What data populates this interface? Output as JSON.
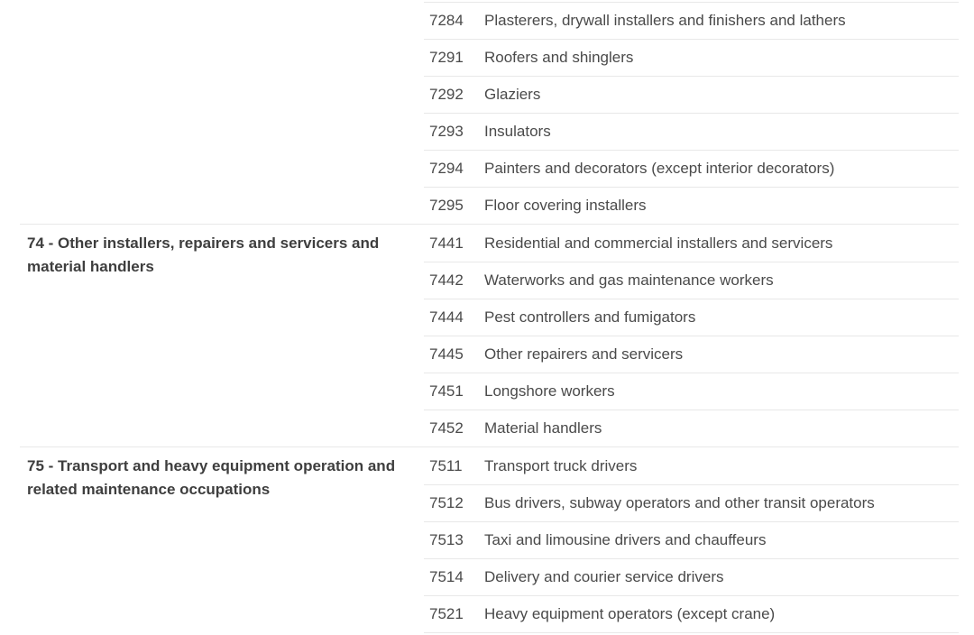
{
  "table": {
    "colors": {
      "background": "#ffffff",
      "text": "#4a4a4a",
      "heading": "#3e3e3e",
      "divider": "#e8e8e8"
    },
    "sections": [
      {
        "group_label": "",
        "rows": [
          {
            "code": "7284",
            "title": "Plasterers, drywall installers and finishers and lathers"
          },
          {
            "code": "7291",
            "title": "Roofers and shinglers"
          },
          {
            "code": "7292",
            "title": "Glaziers"
          },
          {
            "code": "7293",
            "title": "Insulators"
          },
          {
            "code": "7294",
            "title": "Painters and decorators (except interior decorators)"
          },
          {
            "code": "7295",
            "title": "Floor covering installers"
          }
        ]
      },
      {
        "group_label": "74 - Other installers, repairers and servicers and material handlers",
        "rows": [
          {
            "code": "7441",
            "title": "Residential and commercial installers and servicers"
          },
          {
            "code": "7442",
            "title": "Waterworks and gas maintenance workers"
          },
          {
            "code": "7444",
            "title": "Pest controllers and fumigators"
          },
          {
            "code": "7445",
            "title": "Other repairers and servicers"
          },
          {
            "code": "7451",
            "title": "Longshore workers"
          },
          {
            "code": "7452",
            "title": "Material handlers"
          }
        ]
      },
      {
        "group_label": "75 - Transport and heavy equipment operation and related maintenance occupations",
        "rows": [
          {
            "code": "7511",
            "title": "Transport truck drivers"
          },
          {
            "code": "7512",
            "title": "Bus drivers, subway operators and other transit operators"
          },
          {
            "code": "7513",
            "title": "Taxi and limousine drivers and chauffeurs"
          },
          {
            "code": "7514",
            "title": "Delivery and courier service drivers"
          },
          {
            "code": "7521",
            "title": "Heavy equipment operators (except crane)"
          }
        ]
      }
    ]
  }
}
